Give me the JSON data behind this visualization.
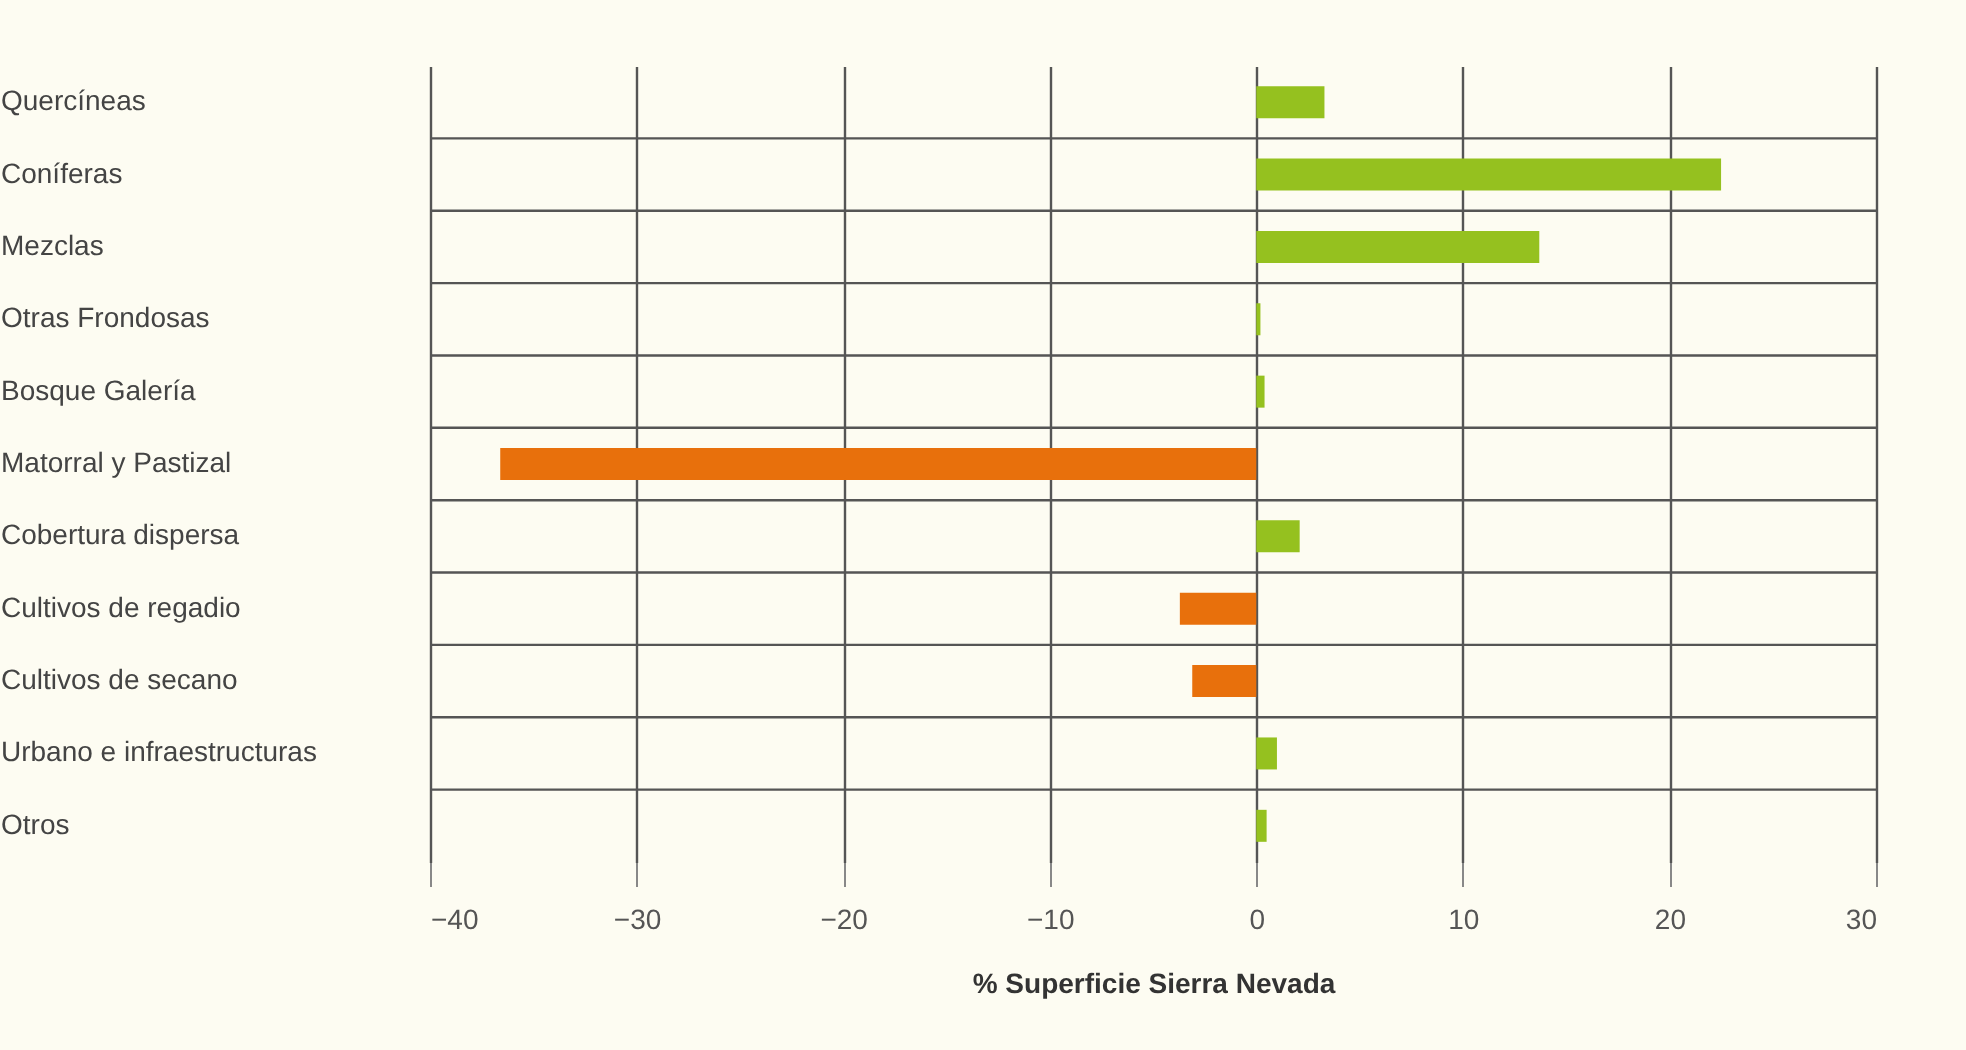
{
  "chart_data": {
    "type": "bar",
    "orientation": "horizontal",
    "xlabel": "% Superficie Sierra Nevada",
    "categories": [
      "Quercíneas",
      "Coníferas",
      "Mezclas",
      "Otras Frondosas",
      "Bosque Galería",
      "Matorral y Pastizal",
      "Cobertura dispersa",
      "Cultivos de regadio",
      "Cultivos de secano",
      "Urbano e infraestructuras",
      "Otros"
    ],
    "values": [
      3.3,
      22.5,
      13.7,
      0.2,
      0.4,
      -36.6,
      2.1,
      -3.7,
      -3.1,
      1.0,
      0.5
    ],
    "colors": [
      "#95c11f",
      "#95c11f",
      "#95c11f",
      "#95c11f",
      "#95c11f",
      "#e8700c",
      "#95c11f",
      "#e8700c",
      "#e8700c",
      "#95c11f",
      "#95c11f"
    ],
    "xlim": [
      -40,
      30
    ],
    "xticks": [
      -40,
      -30,
      -20,
      -10,
      0,
      10,
      20,
      30
    ],
    "grid": true
  }
}
